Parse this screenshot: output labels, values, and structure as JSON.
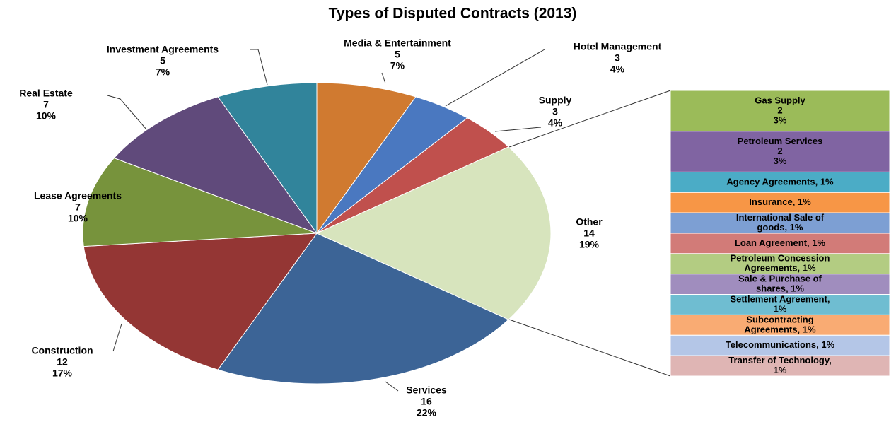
{
  "chart_data": {
    "type": "pie-of-bar",
    "title": "Types of Disputed Contracts (2013)",
    "categories": [
      "Media & Entertainment",
      "Hotel Management",
      "Supply",
      "Other",
      "Services",
      "Construction",
      "Lease Agreements",
      "Real Estate",
      "Investment Agreements"
    ],
    "values": [
      5,
      3,
      3,
      14,
      16,
      12,
      7,
      7,
      5
    ],
    "percent_labels": [
      "7%",
      "4%",
      "4%",
      "19%",
      "22%",
      "17%",
      "10%",
      "10%",
      "7%"
    ],
    "colors": [
      "#d07a30",
      "#4a78c0",
      "#c0504d",
      "#d7e4bd",
      "#3c6496",
      "#943634",
      "#77933c",
      "#604a7b",
      "#31849b"
    ],
    "breakdown": [
      {
        "label": [
          "Gas Supply"
        ],
        "value": 2,
        "percent_label": "3%",
        "color": "#9bbb59"
      },
      {
        "label": [
          "Petroleum Services"
        ],
        "value": 2,
        "percent_label": "3%",
        "color": "#8064a2"
      },
      {
        "label": [
          "Agency Agreements, 1%"
        ],
        "value": 1,
        "color": "#4bacc6"
      },
      {
        "label": [
          "Insurance, 1%"
        ],
        "value": 1,
        "color": "#f79646"
      },
      {
        "label": [
          "International Sale of",
          "goods, 1%"
        ],
        "value": 1,
        "color": "#7d9fd3"
      },
      {
        "label": [
          "Loan Agreement,  1%"
        ],
        "value": 1,
        "color": "#d27b78"
      },
      {
        "label": [
          "Petroleum Concession",
          "Agreements, 1%"
        ],
        "value": 1,
        "color": "#b3cc82"
      },
      {
        "label": [
          "Sale & Purchase of",
          "shares, 1%"
        ],
        "value": 1,
        "color": "#a08dbe"
      },
      {
        "label": [
          "Settlement Agreement,",
          "1%"
        ],
        "value": 1,
        "color": "#6fbdd1"
      },
      {
        "label": [
          "Subcontracting",
          "Agreements, 1%"
        ],
        "value": 1,
        "color": "#f9ab73"
      },
      {
        "label": [
          "Telecommunications, 1%"
        ],
        "value": 1,
        "color": "#b4c6e7"
      },
      {
        "label": [
          "Transfer of Technology,",
          "1%"
        ],
        "value": 1,
        "color": "#dfb5b4"
      }
    ]
  }
}
